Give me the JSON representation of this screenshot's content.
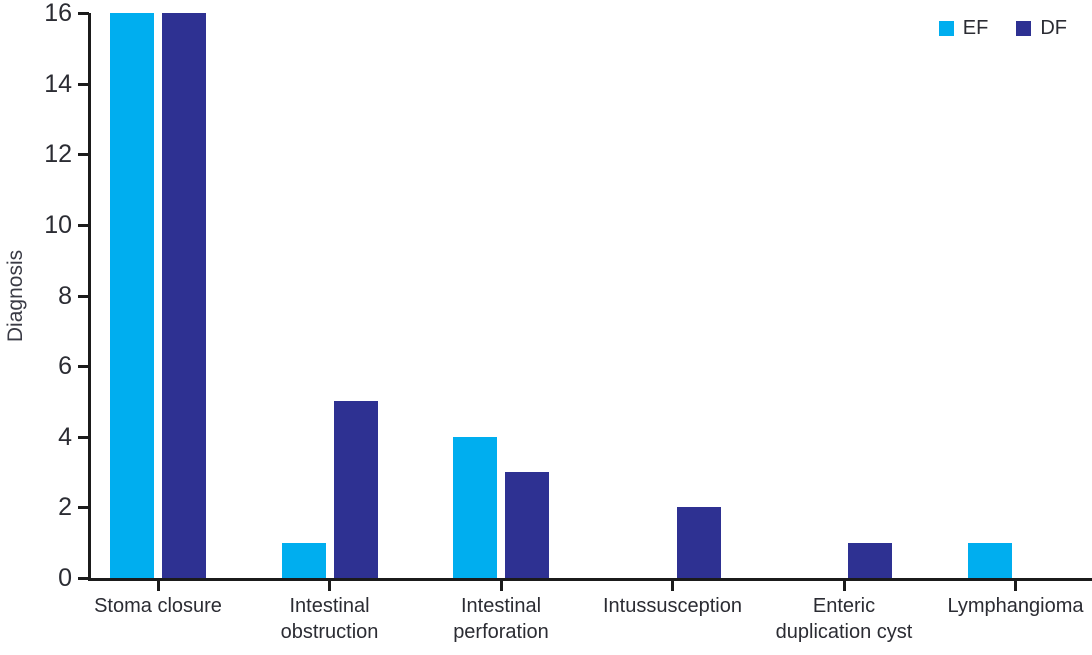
{
  "chart_data": {
    "type": "bar",
    "title": "",
    "categories": [
      "Stoma closure",
      "Intestinal obstruction",
      "Intestinal perforation",
      "Intussusception",
      "Enteric duplication cyst",
      "Lymphangioma"
    ],
    "series": [
      {
        "name": "EF",
        "color": "#00AEEF",
        "values": [
          16,
          1,
          4,
          0,
          0,
          1
        ]
      },
      {
        "name": "DF",
        "color": "#2E3192",
        "values": [
          16,
          5,
          3,
          2,
          1,
          0
        ]
      }
    ],
    "xlabel": "",
    "ylabel": "Diagnosis",
    "ylim": [
      0,
      16
    ],
    "yticks": [
      0,
      2,
      4,
      6,
      8,
      10,
      12,
      14,
      16
    ],
    "grid": false,
    "legend_position": "top-right",
    "colors": {
      "ef_bar": "#00AEEF",
      "df_bar": "#2E3192",
      "axis": "#1b1b1b",
      "text": "#2b2c33"
    }
  }
}
